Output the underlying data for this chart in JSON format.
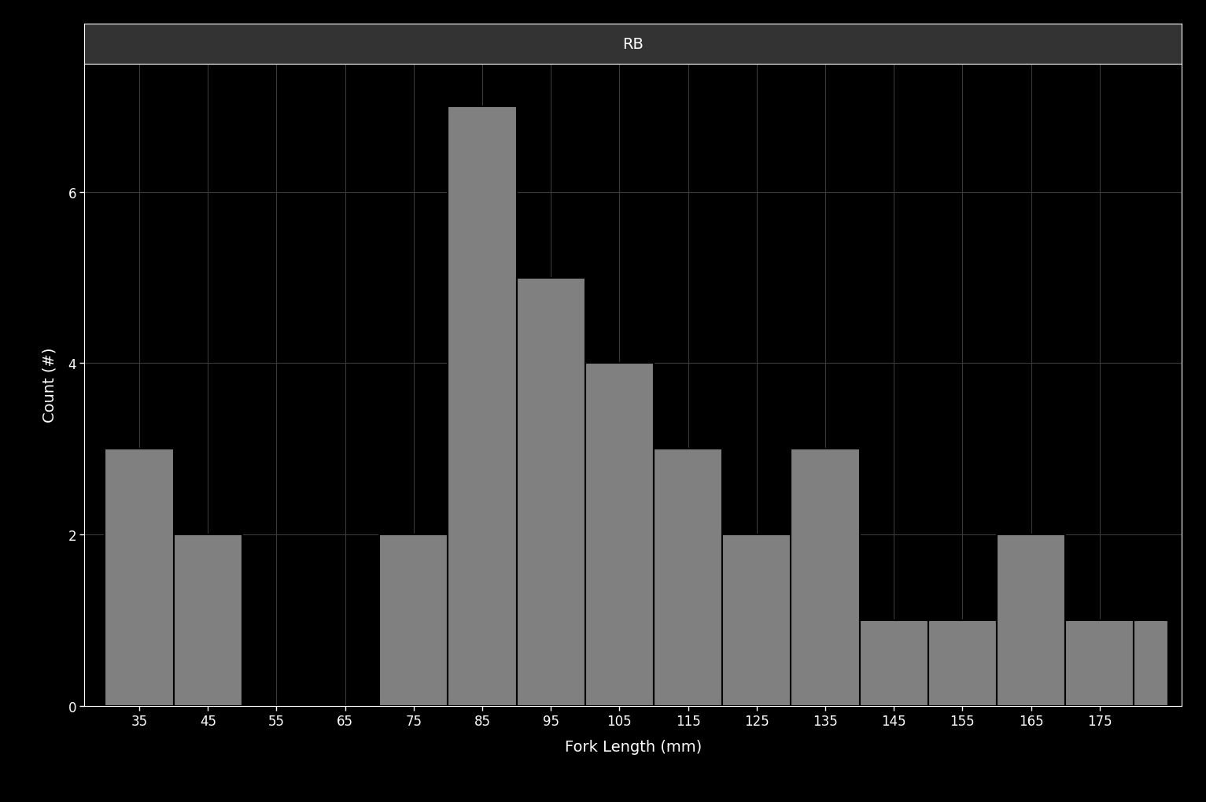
{
  "title": "RB",
  "xlabel": "Fork Length (mm)",
  "ylabel": "Count (#)",
  "background_color": "#000000",
  "bar_color": "#808080",
  "title_bg_color": "#333333",
  "text_color": "#ffffff",
  "grid_color": "#3a3a3a",
  "bin_edges": [
    30,
    40,
    50,
    60,
    70,
    80,
    90,
    100,
    110,
    120,
    130,
    140,
    150,
    160,
    170,
    180,
    185
  ],
  "counts": [
    3,
    2,
    0,
    0,
    2,
    7,
    5,
    4,
    3,
    2,
    3,
    1,
    1,
    2,
    1,
    1
  ],
  "xtick_labels": [
    "35",
    "45",
    "55",
    "65",
    "75",
    "85",
    "95",
    "105",
    "115",
    "125",
    "135",
    "145",
    "155",
    "165",
    "175"
  ],
  "xtick_positions": [
    35,
    45,
    55,
    65,
    75,
    85,
    95,
    105,
    115,
    125,
    135,
    145,
    155,
    165,
    175
  ],
  "ylim": [
    0,
    7.5
  ],
  "xlim": [
    27,
    187
  ],
  "ytick_positions": [
    0,
    2,
    4,
    6
  ],
  "title_fontsize": 14,
  "axis_label_fontsize": 14,
  "tick_fontsize": 12
}
